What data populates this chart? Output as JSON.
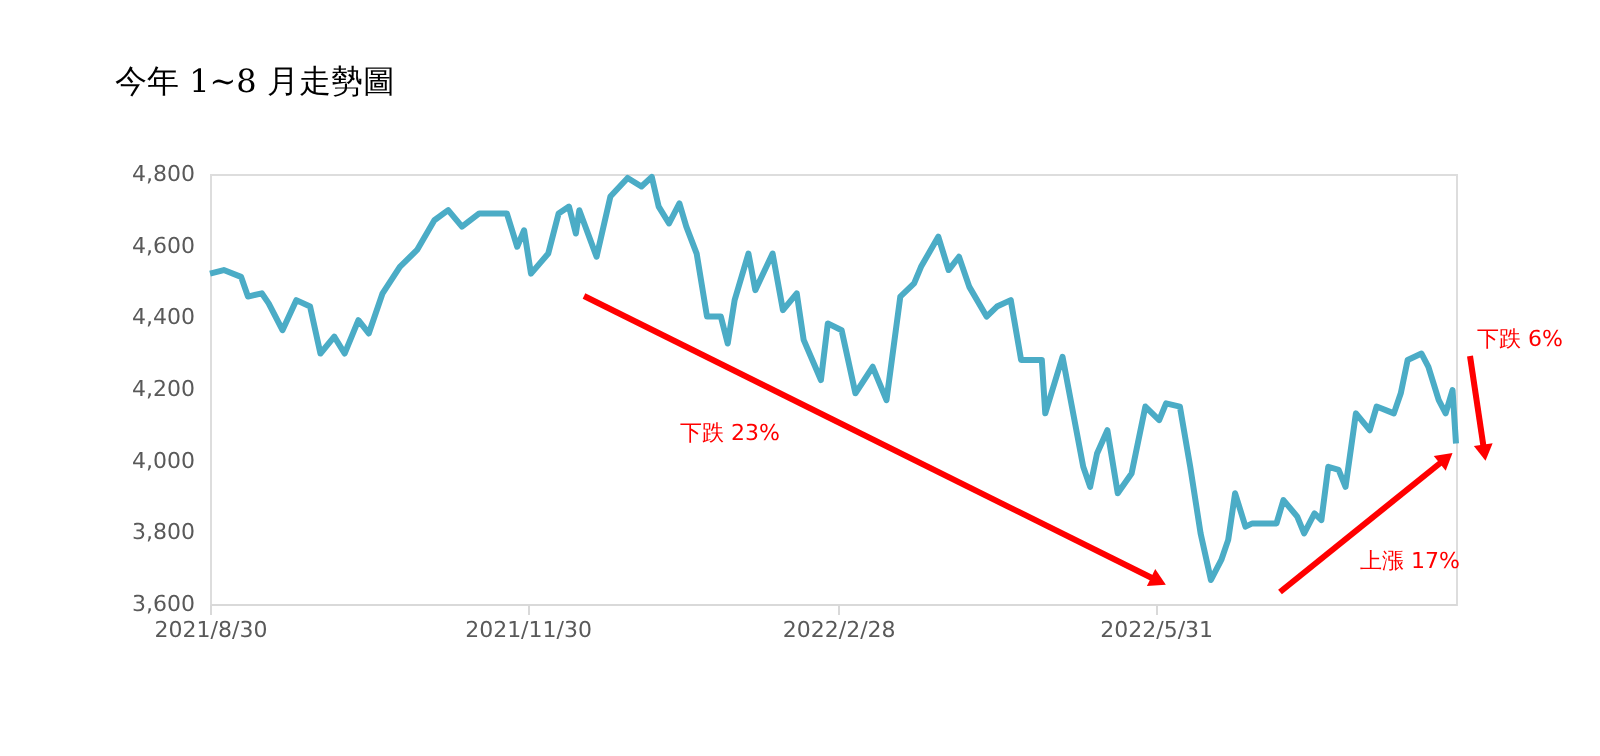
{
  "chart_data": {
    "type": "line",
    "title": "今年 1~8 月走勢圖",
    "x": [
      "2021-08-30",
      "2021-09-03",
      "2021-09-08",
      "2021-09-10",
      "2021-09-14",
      "2021-09-16",
      "2021-09-20",
      "2021-09-24",
      "2021-09-28",
      "2021-10-01",
      "2021-10-05",
      "2021-10-08",
      "2021-10-12",
      "2021-10-15",
      "2021-10-19",
      "2021-10-24",
      "2021-10-29",
      "2021-11-03",
      "2021-11-07",
      "2021-11-11",
      "2021-11-16",
      "2021-11-24",
      "2021-11-27",
      "2021-11-29",
      "2021-12-01",
      "2021-12-06",
      "2021-12-09",
      "2021-12-12",
      "2021-12-14",
      "2021-12-15",
      "2021-12-20",
      "2021-12-24",
      "2021-12-29",
      "2022-01-02",
      "2022-01-05",
      "2022-01-07",
      "2022-01-10",
      "2022-01-13",
      "2022-01-15",
      "2022-01-18",
      "2022-01-21",
      "2022-01-25",
      "2022-01-27",
      "2022-01-29",
      "2022-02-02",
      "2022-02-04",
      "2022-02-09",
      "2022-02-12",
      "2022-02-16",
      "2022-02-18",
      "2022-02-23",
      "2022-02-25",
      "2022-03-01",
      "2022-03-05",
      "2022-03-10",
      "2022-03-14",
      "2022-03-18",
      "2022-03-22",
      "2022-03-24",
      "2022-03-29",
      "2022-04-01",
      "2022-04-04",
      "2022-04-07",
      "2022-04-12",
      "2022-04-15",
      "2022-04-19",
      "2022-04-22",
      "2022-04-28",
      "2022-04-29",
      "2022-05-04",
      "2022-05-10",
      "2022-05-12",
      "2022-05-14",
      "2022-05-17",
      "2022-05-20",
      "2022-05-24",
      "2022-05-28",
      "2022-06-01",
      "2022-06-03",
      "2022-06-07",
      "2022-06-10",
      "2022-06-13",
      "2022-06-16",
      "2022-06-19",
      "2022-06-21",
      "2022-06-23",
      "2022-06-26",
      "2022-06-28",
      "2022-07-05",
      "2022-07-07",
      "2022-07-11",
      "2022-07-13",
      "2022-07-16",
      "2022-07-18",
      "2022-07-20",
      "2022-07-23",
      "2022-07-25",
      "2022-07-28",
      "2022-08-01",
      "2022-08-03",
      "2022-08-08",
      "2022-08-10",
      "2022-08-12",
      "2022-08-16",
      "2022-08-18",
      "2022-08-21",
      "2022-08-23",
      "2022-08-25",
      "2022-08-26"
    ],
    "series": [
      {
        "color": "#4bacc6",
        "values": [
          4522,
          4532,
          4513,
          4458,
          4467,
          4439,
          4364,
          4448,
          4430,
          4299,
          4346,
          4299,
          4392,
          4355,
          4467,
          4541,
          4588,
          4671,
          4699,
          4653,
          4690,
          4690,
          4597,
          4643,
          4522,
          4578,
          4690,
          4709,
          4634,
          4699,
          4569,
          4737,
          4789,
          4765,
          4792,
          4709,
          4662,
          4718,
          4653,
          4578,
          4402,
          4402,
          4327,
          4448,
          4578,
          4476,
          4578,
          4420,
          4467,
          4337,
          4225,
          4383,
          4364,
          4188,
          4262,
          4169,
          4458,
          4495,
          4541,
          4625,
          4532,
          4569,
          4485,
          4402,
          4430,
          4448,
          4281,
          4281,
          4132,
          4290,
          3983,
          3927,
          4020,
          4085,
          3909,
          3964,
          4151,
          4113,
          4160,
          4151,
          3983,
          3797,
          3667,
          3723,
          3779,
          3909,
          3816,
          3825,
          3825,
          3890,
          3844,
          3797,
          3853,
          3834,
          3983,
          3974,
          3927,
          4132,
          4085,
          4151,
          4132,
          4188,
          4281,
          4299,
          4262,
          4169,
          4132,
          4197,
          4048
        ]
      }
    ],
    "xlim": [
      "2021-08-30",
      "2022-08-26"
    ],
    "xticks": [
      {
        "value": "2021-08-30",
        "label": "2021/8/30"
      },
      {
        "value": "2021-11-30",
        "label": "2021/11/30"
      },
      {
        "value": "2022-02-28",
        "label": "2022/2/28"
      },
      {
        "value": "2022-05-31",
        "label": "2022/5/31"
      }
    ],
    "ylim": [
      3600,
      4800
    ],
    "yticks": [
      {
        "value": 3600,
        "label": "3,600"
      },
      {
        "value": 3800,
        "label": "3,800"
      },
      {
        "value": 4000,
        "label": "4,000"
      },
      {
        "value": 4200,
        "label": "4,200"
      },
      {
        "value": 4400,
        "label": "4,400"
      },
      {
        "value": 4600,
        "label": "4,600"
      },
      {
        "value": 4800,
        "label": "4,800"
      }
    ],
    "annotations": [
      "下跌 23%",
      "上漲 17%",
      "下跌 6%"
    ],
    "grid": false,
    "marker": "none",
    "line_style": "solid"
  }
}
